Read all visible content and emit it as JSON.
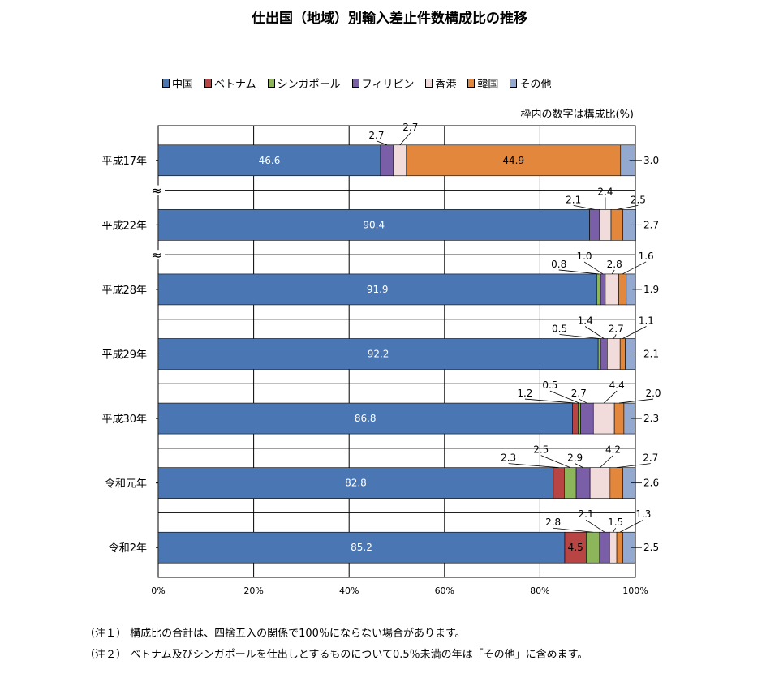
{
  "chart_data": {
    "type": "bar",
    "orientation": "horizontal",
    "stacked": true,
    "title": "仕出国（地域）別輸入差止件数構成比の推移",
    "note_unit": "枠内の数字は構成比(%)",
    "categories": [
      "平成17年",
      "平成22年",
      "平成28年",
      "平成29年",
      "平成30年",
      "令和元年",
      "令和2年"
    ],
    "series": [
      {
        "name": "中国",
        "color": "#4a77b4",
        "values": [
          46.6,
          90.4,
          91.9,
          92.2,
          86.8,
          82.8,
          85.2
        ],
        "labels": [
          "46.6",
          "90.4",
          "91.9",
          "92.2",
          "86.8",
          "82.8",
          "85.2"
        ]
      },
      {
        "name": "ベトナム",
        "color": "#b94444",
        "values": [
          0,
          0,
          0,
          0,
          1.2,
          2.3,
          4.5
        ],
        "labels": [
          "",
          "",
          "",
          "",
          "1.2",
          "2.3",
          "4.5"
        ]
      },
      {
        "name": "シンガポール",
        "color": "#8db55a",
        "values": [
          0,
          0,
          0.8,
          0.5,
          0.5,
          2.5,
          2.8
        ],
        "labels": [
          "",
          "",
          "0.8",
          "0.5",
          "0.5",
          "2.5",
          "2.8"
        ]
      },
      {
        "name": "フィリピン",
        "color": "#7b5ea8",
        "values": [
          2.7,
          2.1,
          1.0,
          1.4,
          2.7,
          2.9,
          2.1
        ],
        "labels": [
          "2.7",
          "2.1",
          "1.0",
          "1.4",
          "2.7",
          "2.9",
          "2.1"
        ]
      },
      {
        "name": "香港",
        "color": "#f2dcdb",
        "values": [
          2.7,
          2.4,
          2.8,
          2.7,
          4.4,
          4.2,
          1.5
        ],
        "labels": [
          "2.7",
          "2.4",
          "2.8",
          "2.7",
          "4.4",
          "4.2",
          "1.5"
        ]
      },
      {
        "name": "韓国",
        "color": "#e2873c",
        "values": [
          44.9,
          2.5,
          1.6,
          1.1,
          2.0,
          2.7,
          1.3
        ],
        "labels": [
          "44.9",
          "2.5",
          "1.6",
          "1.1",
          "2.0",
          "2.7",
          "1.3"
        ]
      },
      {
        "name": "その他",
        "color": "#94a9d0",
        "values": [
          3.0,
          2.7,
          1.9,
          2.1,
          2.3,
          2.6,
          2.5
        ],
        "labels": [
          "3.0",
          "2.7",
          "1.9",
          "2.1",
          "2.3",
          "2.6",
          "2.5"
        ]
      }
    ],
    "x_ticks": [
      "0%",
      "20%",
      "40%",
      "60%",
      "80%",
      "100%"
    ],
    "xlim": [
      0,
      100
    ],
    "grid": true,
    "legend_position": "top",
    "axis_break_after": [
      "平成17年",
      "平成22年"
    ],
    "axis_break_symbol": "≈"
  },
  "notes": [
    "（注１） 構成比の合計は、四捨五入の関係で100％にならない場合があります。",
    "（注２） ベトナム及びシンガポールを仕出しとするものについて0.5％未満の年は「その他」に含めます。"
  ]
}
